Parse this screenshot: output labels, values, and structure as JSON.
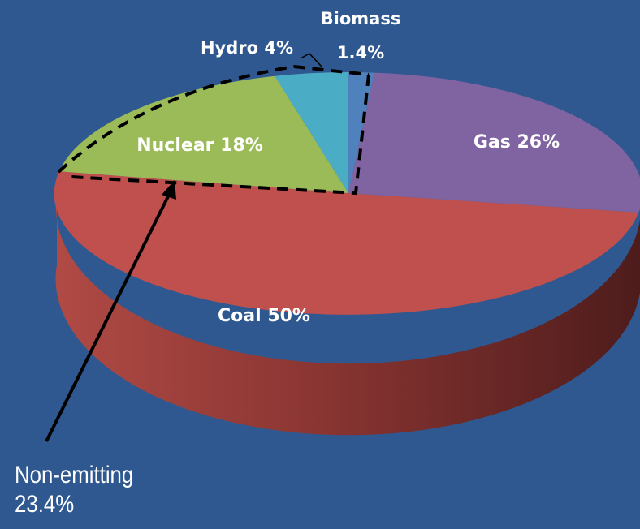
{
  "chart_data": {
    "type": "pie",
    "slices": [
      {
        "name": "Coal",
        "value": 50,
        "label": "Coal 50%",
        "color": "#c0504d"
      },
      {
        "name": "Gas",
        "value": 26,
        "label": "Gas 26%",
        "color": "#8064a2"
      },
      {
        "name": "Nuclear",
        "value": 18,
        "label": "Nuclear 18%",
        "color": "#9bbb59"
      },
      {
        "name": "Hydro",
        "value": 4,
        "label": "Hydro 4%",
        "color": "#4bacc6"
      },
      {
        "name": "Biomass",
        "value": 1.4,
        "label_line1": "Biomass",
        "label_line2": "1.4%",
        "color": "#4f81bd"
      }
    ],
    "callout": {
      "line1": "Non-emitting",
      "line2": "23.4%"
    }
  },
  "background_color": "#2f5890"
}
